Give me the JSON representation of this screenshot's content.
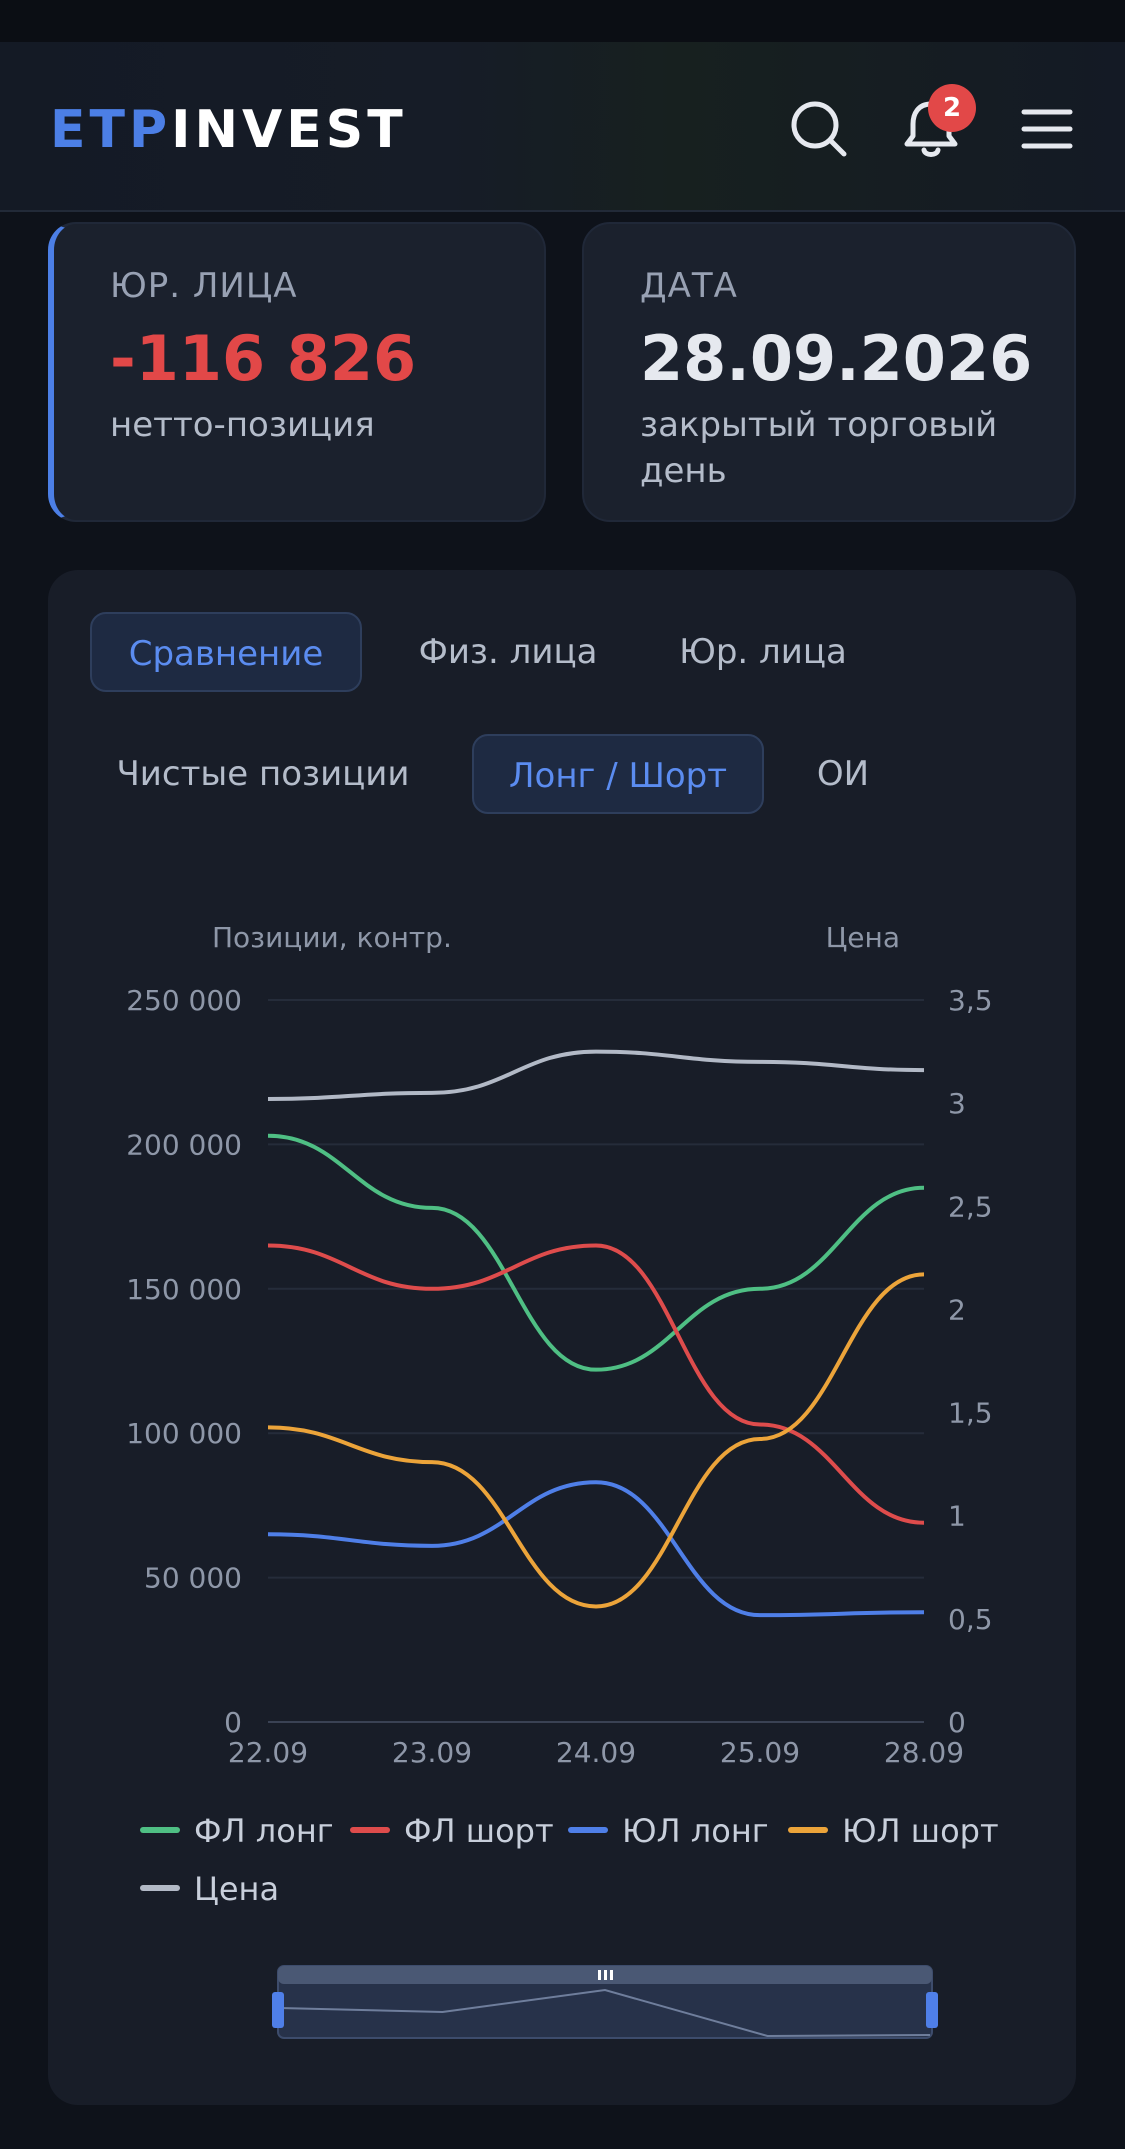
{
  "header": {
    "logo_part1": "ETP",
    "logo_part2": "INVEST",
    "notifications_count": "2"
  },
  "cards": [
    {
      "caption": "ЮР. ЛИЦА",
      "value": "-116 826",
      "subtitle": "нетто-позиция"
    },
    {
      "caption": "ДАТА",
      "value": "28.09.2026",
      "subtitle": "закрытый торговый день"
    }
  ],
  "tabs": [
    "Сравнение",
    "Физ. лица",
    "Юр. лица"
  ],
  "active_tab": 0,
  "subtabs": [
    "Чистые позиции",
    "Лонг / Шорт",
    "ОИ"
  ],
  "active_subtab": 1,
  "chart_data": {
    "type": "line",
    "left_axis_title": "Позиции, контр.",
    "right_axis_title": "Цена",
    "x": [
      "22.09",
      "23.09",
      "24.09",
      "25.09",
      "28.09"
    ],
    "y_ticks": [
      "0",
      "50 000",
      "100 000",
      "150 000",
      "200 000",
      "250 000"
    ],
    "y2_ticks": [
      "0",
      "0,5",
      "1",
      "1,5",
      "2",
      "2,5",
      "3",
      "3,5"
    ],
    "ylim": [
      0,
      250000
    ],
    "y2lim": [
      0,
      3.5
    ],
    "grid": true,
    "legend_position": "bottom",
    "series": [
      {
        "name": "ФЛ лонг",
        "color": "#4fbf84",
        "axis": "left",
        "values": [
          203000,
          178000,
          122000,
          150000,
          185000
        ]
      },
      {
        "name": "ФЛ шорт",
        "color": "#de4c4c",
        "axis": "left",
        "values": [
          165000,
          150000,
          165000,
          103000,
          69000
        ]
      },
      {
        "name": "ЮЛ лонг",
        "color": "#4f7fe8",
        "axis": "left",
        "values": [
          65000,
          61000,
          83000,
          37000,
          38000
        ]
      },
      {
        "name": "ЮЛ шорт",
        "color": "#eca43a",
        "axis": "left",
        "values": [
          102000,
          90000,
          40000,
          98000,
          155000
        ]
      },
      {
        "name": "Цена",
        "color": "#b2b9c6",
        "axis": "right",
        "values": [
          3.02,
          3.05,
          3.25,
          3.2,
          3.16
        ]
      }
    ]
  }
}
